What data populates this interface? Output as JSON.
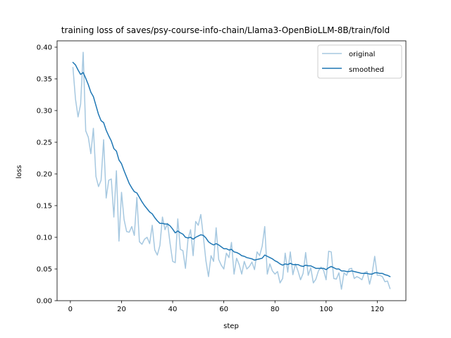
{
  "chart_data": {
    "type": "line",
    "title": "training loss of saves/psy-course-info-chain/Llama3-OpenBioLLM-8B/train/fold",
    "xlabel": "step",
    "ylabel": "loss",
    "xlim": [
      -5.2,
      131.2
    ],
    "ylim": [
      0.0,
      0.41
    ],
    "xticks": [
      0,
      20,
      40,
      60,
      80,
      100,
      120
    ],
    "xtick_labels": [
      "0",
      "20",
      "40",
      "60",
      "80",
      "100",
      "120"
    ],
    "yticks": [
      0.0,
      0.05,
      0.1,
      0.15,
      0.2,
      0.25,
      0.3,
      0.35,
      0.4
    ],
    "ytick_labels": [
      "0.00",
      "0.05",
      "0.10",
      "0.15",
      "0.20",
      "0.25",
      "0.30",
      "0.35",
      "0.40"
    ],
    "grid": false,
    "legend_position": "top-right",
    "series": [
      {
        "name": "original",
        "color": "#a6c8e0",
        "x": [
          1,
          2,
          3,
          4,
          5,
          6,
          7,
          8,
          9,
          10,
          11,
          12,
          13,
          14,
          15,
          16,
          17,
          18,
          19,
          20,
          21,
          22,
          23,
          24,
          25,
          26,
          27,
          28,
          29,
          30,
          31,
          32,
          33,
          34,
          35,
          36,
          37,
          38,
          39,
          40,
          41,
          42,
          43,
          44,
          45,
          46,
          47,
          48,
          49,
          50,
          51,
          52,
          53,
          54,
          55,
          56,
          57,
          58,
          59,
          60,
          61,
          62,
          63,
          64,
          65,
          66,
          67,
          68,
          69,
          70,
          71,
          72,
          73,
          74,
          75,
          76,
          77,
          78,
          79,
          80,
          81,
          82,
          83,
          84,
          85,
          86,
          87,
          88,
          89,
          90,
          91,
          92,
          93,
          94,
          95,
          96,
          97,
          98,
          99,
          100,
          101,
          102,
          103,
          104,
          105,
          106,
          107,
          108,
          109,
          110,
          111,
          112,
          113,
          114,
          115,
          116,
          117,
          118,
          119,
          120,
          121,
          122,
          123,
          124,
          125
        ],
        "values": [
          0.368,
          0.318,
          0.29,
          0.31,
          0.392,
          0.268,
          0.258,
          0.232,
          0.272,
          0.196,
          0.18,
          0.19,
          0.254,
          0.162,
          0.19,
          0.192,
          0.132,
          0.205,
          0.094,
          0.171,
          0.128,
          0.109,
          0.108,
          0.117,
          0.103,
          0.163,
          0.093,
          0.089,
          0.097,
          0.1,
          0.09,
          0.119,
          0.08,
          0.072,
          0.087,
          0.132,
          0.112,
          0.122,
          0.09,
          0.062,
          0.06,
          0.129,
          0.081,
          0.079,
          0.051,
          0.097,
          0.112,
          0.071,
          0.125,
          0.119,
          0.136,
          0.101,
          0.063,
          0.038,
          0.071,
          0.062,
          0.115,
          0.065,
          0.056,
          0.05,
          0.075,
          0.068,
          0.092,
          0.042,
          0.067,
          0.057,
          0.042,
          0.062,
          0.05,
          0.054,
          0.061,
          0.049,
          0.077,
          0.071,
          0.086,
          0.117,
          0.042,
          0.058,
          0.047,
          0.042,
          0.046,
          0.028,
          0.035,
          0.075,
          0.045,
          0.077,
          0.041,
          0.058,
          0.047,
          0.033,
          0.043,
          0.076,
          0.04,
          0.052,
          0.028,
          0.034,
          0.047,
          0.053,
          0.048,
          0.033,
          0.078,
          0.077,
          0.035,
          0.034,
          0.044,
          0.018,
          0.044,
          0.04,
          0.05,
          0.051,
          0.035,
          0.038,
          0.036,
          0.033,
          0.044,
          0.046,
          0.026,
          0.043,
          0.07,
          0.04,
          0.04,
          0.038,
          0.03,
          0.031,
          0.019
        ]
      },
      {
        "name": "smoothed",
        "color": "#1f77b4",
        "x": [
          1,
          2,
          3,
          4,
          5,
          6,
          7,
          8,
          9,
          10,
          11,
          12,
          13,
          14,
          15,
          16,
          17,
          18,
          19,
          20,
          21,
          22,
          23,
          24,
          25,
          26,
          27,
          28,
          29,
          30,
          31,
          32,
          33,
          34,
          35,
          36,
          37,
          38,
          39,
          40,
          41,
          42,
          43,
          44,
          45,
          46,
          47,
          48,
          49,
          50,
          51,
          52,
          53,
          54,
          55,
          56,
          57,
          58,
          59,
          60,
          61,
          62,
          63,
          64,
          65,
          66,
          67,
          68,
          69,
          70,
          71,
          72,
          73,
          74,
          75,
          76,
          77,
          78,
          79,
          80,
          81,
          82,
          83,
          84,
          85,
          86,
          87,
          88,
          89,
          90,
          91,
          92,
          93,
          94,
          95,
          96,
          97,
          98,
          99,
          100,
          101,
          102,
          103,
          104,
          105,
          106,
          107,
          108,
          109,
          110,
          111,
          112,
          113,
          114,
          115,
          116,
          117,
          118,
          119,
          120,
          121,
          122,
          123,
          124,
          125
        ],
        "values": [
          0.376,
          0.372,
          0.364,
          0.357,
          0.36,
          0.351,
          0.341,
          0.329,
          0.322,
          0.308,
          0.294,
          0.284,
          0.281,
          0.269,
          0.26,
          0.252,
          0.24,
          0.236,
          0.222,
          0.216,
          0.205,
          0.195,
          0.185,
          0.178,
          0.172,
          0.17,
          0.163,
          0.156,
          0.15,
          0.145,
          0.14,
          0.137,
          0.131,
          0.126,
          0.122,
          0.122,
          0.121,
          0.121,
          0.118,
          0.113,
          0.107,
          0.11,
          0.107,
          0.105,
          0.1,
          0.099,
          0.1,
          0.097,
          0.1,
          0.102,
          0.104,
          0.103,
          0.099,
          0.093,
          0.09,
          0.088,
          0.09,
          0.088,
          0.085,
          0.082,
          0.082,
          0.08,
          0.081,
          0.077,
          0.076,
          0.074,
          0.071,
          0.07,
          0.068,
          0.067,
          0.066,
          0.064,
          0.065,
          0.066,
          0.067,
          0.072,
          0.07,
          0.068,
          0.066,
          0.063,
          0.061,
          0.058,
          0.056,
          0.058,
          0.057,
          0.059,
          0.057,
          0.057,
          0.057,
          0.055,
          0.054,
          0.056,
          0.055,
          0.055,
          0.053,
          0.051,
          0.051,
          0.051,
          0.051,
          0.049,
          0.052,
          0.054,
          0.052,
          0.05,
          0.05,
          0.047,
          0.047,
          0.046,
          0.046,
          0.047,
          0.046,
          0.045,
          0.044,
          0.043,
          0.043,
          0.043,
          0.042,
          0.042,
          0.044,
          0.044,
          0.043,
          0.043,
          0.041,
          0.04,
          0.038
        ]
      }
    ]
  }
}
